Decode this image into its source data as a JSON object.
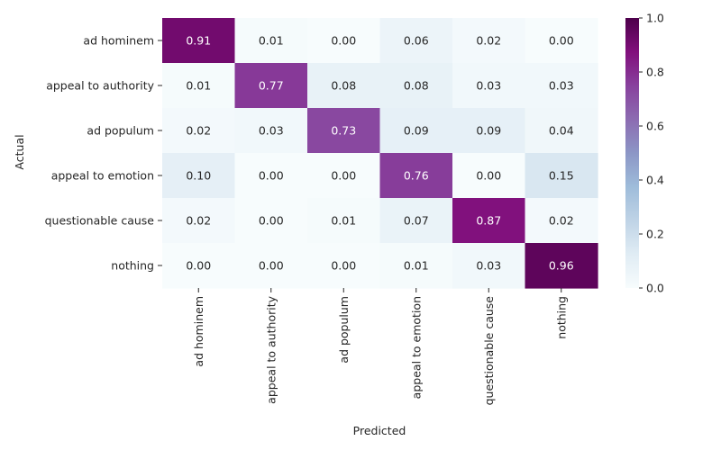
{
  "chart_data": {
    "type": "heatmap",
    "title": "",
    "xlabel": "Predicted",
    "ylabel": "Actual",
    "row_labels": [
      "ad hominem",
      "appeal to authority",
      "ad populum",
      "appeal to emotion",
      "questionable cause",
      "nothing"
    ],
    "col_labels": [
      "ad hominem",
      "appeal to authority",
      "ad populum",
      "appeal to emotion",
      "questionable cause",
      "nothing"
    ],
    "values": [
      [
        0.91,
        0.01,
        0.0,
        0.06,
        0.02,
        0.0
      ],
      [
        0.01,
        0.77,
        0.08,
        0.08,
        0.03,
        0.03
      ],
      [
        0.02,
        0.03,
        0.73,
        0.09,
        0.09,
        0.04
      ],
      [
        0.1,
        0.0,
        0.0,
        0.76,
        0.0,
        0.15
      ],
      [
        0.02,
        0.0,
        0.01,
        0.07,
        0.87,
        0.02
      ],
      [
        0.0,
        0.0,
        0.0,
        0.01,
        0.03,
        0.96
      ]
    ],
    "value_labels": [
      [
        "0.91",
        "0.01",
        "0.00",
        "0.06",
        "0.02",
        "0.00"
      ],
      [
        "0.01",
        "0.77",
        "0.08",
        "0.08",
        "0.03",
        "0.03"
      ],
      [
        "0.02",
        "0.03",
        "0.73",
        "0.09",
        "0.09",
        "0.04"
      ],
      [
        "0.10",
        "0.00",
        "0.00",
        "0.76",
        "0.00",
        "0.15"
      ],
      [
        "0.02",
        "0.00",
        "0.01",
        "0.07",
        "0.87",
        "0.02"
      ],
      [
        "0.00",
        "0.00",
        "0.00",
        "0.01",
        "0.03",
        "0.96"
      ]
    ],
    "colorbar": {
      "range": [
        0.0,
        1.0
      ],
      "ticks": [
        0.0,
        0.2,
        0.4,
        0.6,
        0.8,
        1.0
      ],
      "tick_labels": [
        "0.0",
        "0.2",
        "0.4",
        "0.6",
        "0.8",
        "1.0"
      ],
      "colormap": "BuPu"
    },
    "colormap_stops": [
      "#f7fcfd",
      "#e0ecf4",
      "#bfd3e6",
      "#9ebcda",
      "#8c96c6",
      "#8c6bb1",
      "#88419d",
      "#810f7c",
      "#4d004b"
    ]
  }
}
